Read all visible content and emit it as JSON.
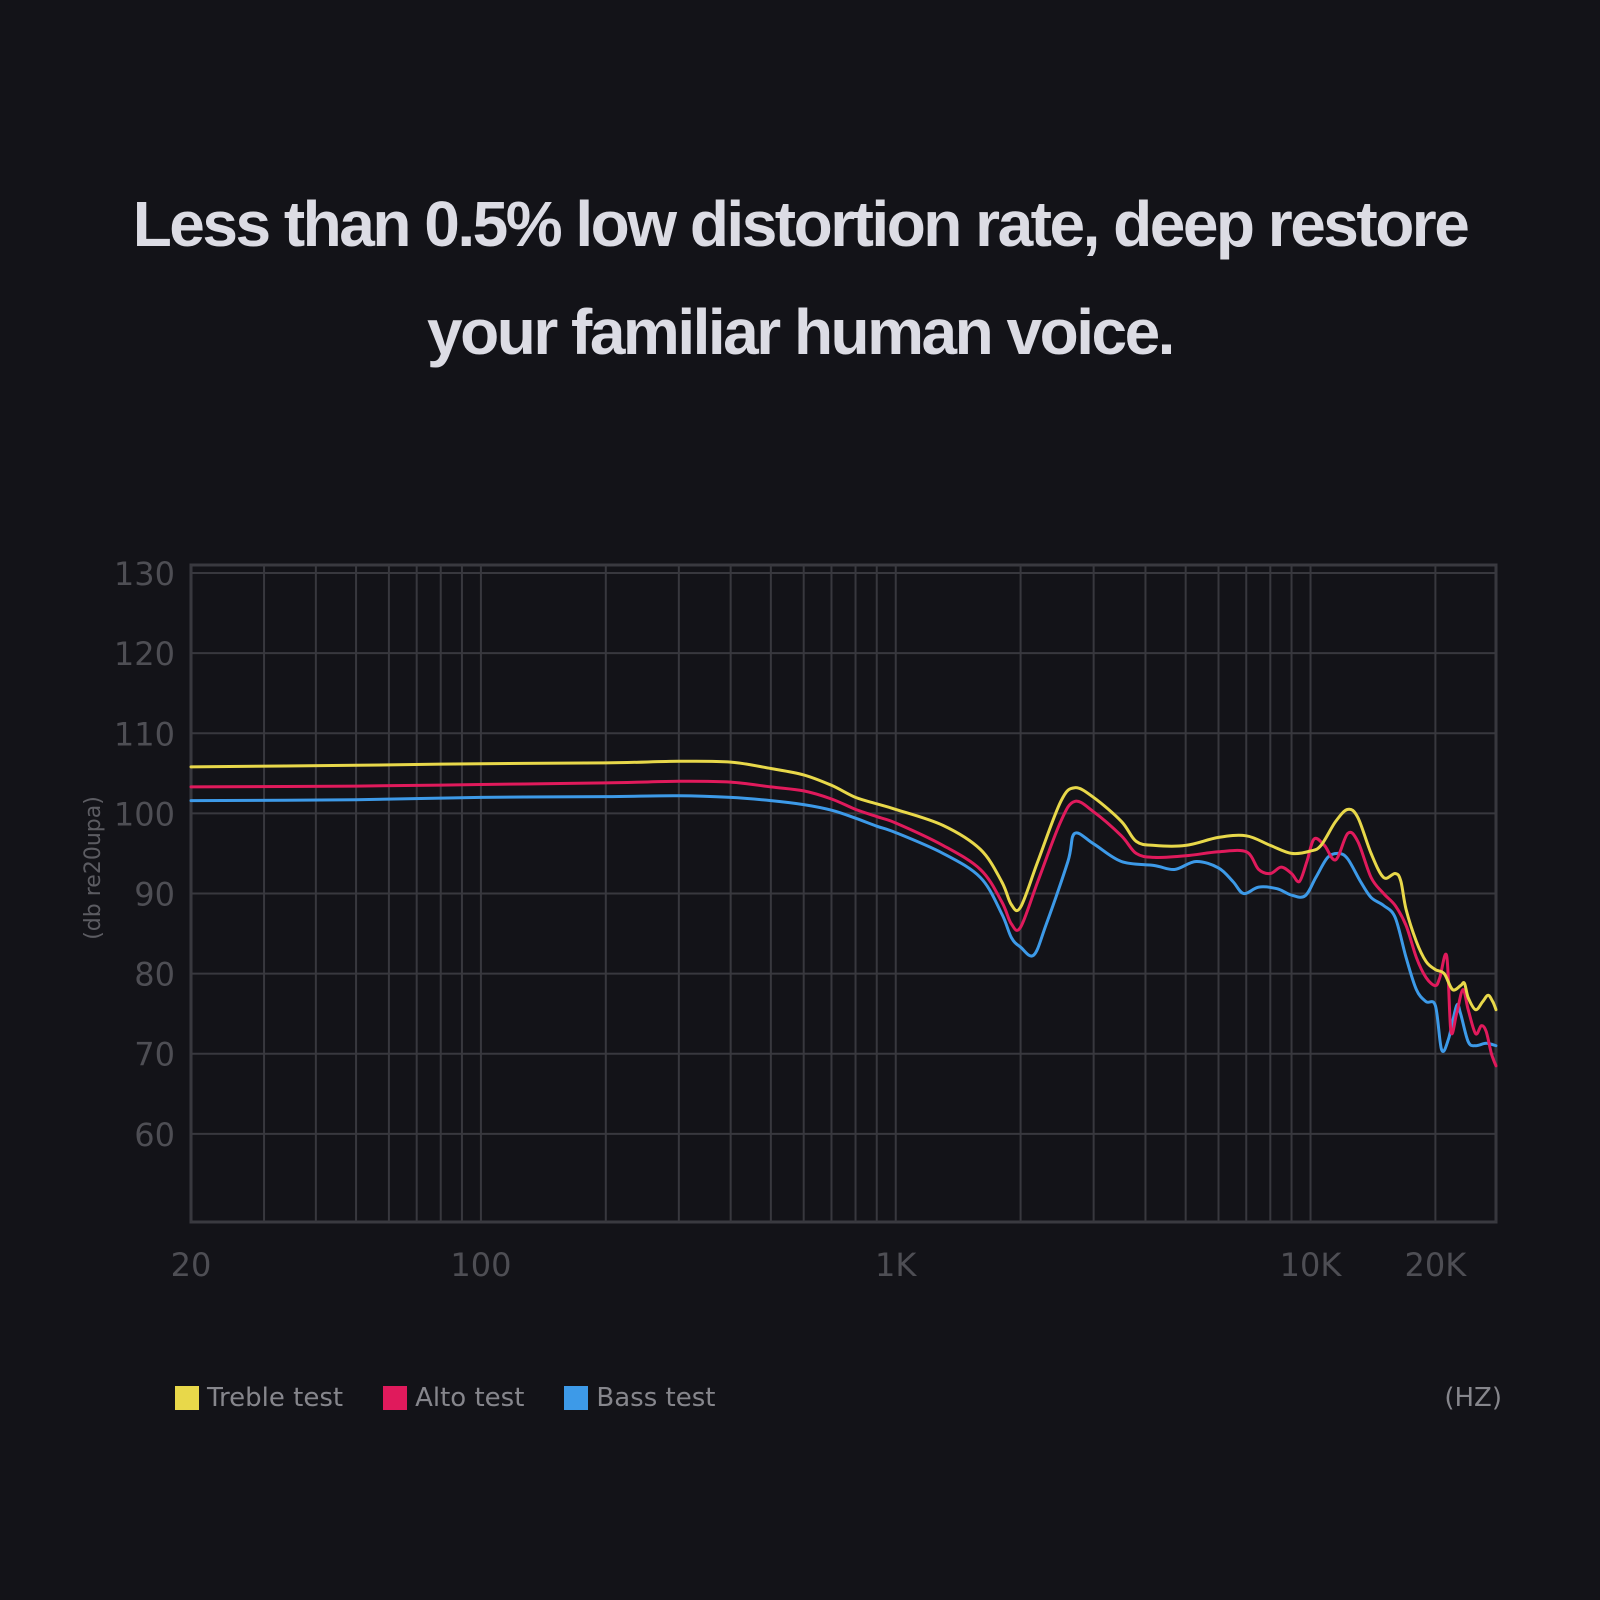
{
  "headline": {
    "line1": "Less than 0.5% low distortion rate, deep restore",
    "line2": "your familiar human voice."
  },
  "chart_data": {
    "type": "line",
    "ylabel": "(db re20upa)",
    "xunit": "(HZ)",
    "xscale": "log",
    "xlim": [
      20,
      28000
    ],
    "ylim": [
      49,
      131
    ],
    "y_ticks": [
      60,
      70,
      80,
      90,
      100,
      110,
      120,
      130
    ],
    "x_tick_labels": [
      {
        "value": 20,
        "label": "20"
      },
      {
        "value": 100,
        "label": "100"
      },
      {
        "value": 1000,
        "label": "1K"
      },
      {
        "value": 10000,
        "label": "10K"
      },
      {
        "value": 20000,
        "label": "20K"
      }
    ],
    "x_gridlines": [
      20,
      30,
      40,
      50,
      60,
      70,
      80,
      90,
      100,
      200,
      300,
      400,
      500,
      600,
      700,
      800,
      900,
      1000,
      2000,
      3000,
      4000,
      5000,
      6000,
      7000,
      8000,
      9000,
      10000,
      20000,
      28000
    ],
    "grid": true,
    "legend_position": "bottom-left",
    "series": [
      {
        "name": "Treble test",
        "color": "#e8d84a",
        "points": [
          [
            20,
            105.8
          ],
          [
            50,
            106
          ],
          [
            100,
            106.2
          ],
          [
            200,
            106.3
          ],
          [
            300,
            106.5
          ],
          [
            400,
            106.4
          ],
          [
            500,
            105.6
          ],
          [
            600,
            104.8
          ],
          [
            700,
            103.5
          ],
          [
            800,
            102
          ],
          [
            900,
            101.2
          ],
          [
            1000,
            100.5
          ],
          [
            1300,
            98.5
          ],
          [
            1600,
            95.5
          ],
          [
            1800,
            91.5
          ],
          [
            1900,
            88.6
          ],
          [
            2000,
            88.3
          ],
          [
            2200,
            94
          ],
          [
            2500,
            101.5
          ],
          [
            2700,
            103.2
          ],
          [
            3000,
            102
          ],
          [
            3500,
            99
          ],
          [
            3800,
            96.5
          ],
          [
            4200,
            96
          ],
          [
            5000,
            96
          ],
          [
            6000,
            97
          ],
          [
            7000,
            97.2
          ],
          [
            8000,
            96
          ],
          [
            9000,
            95
          ],
          [
            10000,
            95.3
          ],
          [
            10600,
            96
          ],
          [
            11500,
            99
          ],
          [
            12300,
            100.5
          ],
          [
            13000,
            99.5
          ],
          [
            14000,
            95
          ],
          [
            15000,
            92
          ],
          [
            16000,
            92.5
          ],
          [
            16500,
            91.6
          ],
          [
            17000,
            88
          ],
          [
            18000,
            84
          ],
          [
            19000,
            81.5
          ],
          [
            20000,
            80.5
          ],
          [
            21000,
            80
          ],
          [
            22000,
            78
          ],
          [
            23000,
            78.5
          ],
          [
            23500,
            78.8
          ],
          [
            24000,
            77
          ],
          [
            25000,
            75.5
          ],
          [
            26000,
            76.5
          ],
          [
            26800,
            77.3
          ],
          [
            27500,
            76.5
          ],
          [
            28000,
            75.5
          ]
        ]
      },
      {
        "name": "Alto test",
        "color": "#e01a5c",
        "points": [
          [
            20,
            103.3
          ],
          [
            50,
            103.4
          ],
          [
            100,
            103.6
          ],
          [
            200,
            103.8
          ],
          [
            300,
            104
          ],
          [
            400,
            103.9
          ],
          [
            500,
            103.3
          ],
          [
            600,
            102.8
          ],
          [
            700,
            101.8
          ],
          [
            800,
            100.5
          ],
          [
            900,
            99.6
          ],
          [
            1000,
            98.8
          ],
          [
            1300,
            96
          ],
          [
            1600,
            93
          ],
          [
            1800,
            89
          ],
          [
            1900,
            86.2
          ],
          [
            2000,
            85.8
          ],
          [
            2200,
            91.5
          ],
          [
            2500,
            99
          ],
          [
            2700,
            101.5
          ],
          [
            3000,
            100.2
          ],
          [
            3500,
            97.2
          ],
          [
            3800,
            95
          ],
          [
            4200,
            94.5
          ],
          [
            5000,
            94.7
          ],
          [
            6000,
            95.2
          ],
          [
            7000,
            95.2
          ],
          [
            7500,
            93
          ],
          [
            8000,
            92.5
          ],
          [
            8500,
            93.3
          ],
          [
            9000,
            92.5
          ],
          [
            9400,
            91.5
          ],
          [
            9800,
            94
          ],
          [
            10200,
            96.8
          ],
          [
            10800,
            96
          ],
          [
            11500,
            94.2
          ],
          [
            12300,
            97.5
          ],
          [
            13000,
            96.5
          ],
          [
            14000,
            92
          ],
          [
            15000,
            90
          ],
          [
            16000,
            88.5
          ],
          [
            17000,
            86
          ],
          [
            18000,
            82
          ],
          [
            19000,
            79.5
          ],
          [
            20000,
            78.5
          ],
          [
            20500,
            79.5
          ],
          [
            21300,
            82.2
          ],
          [
            21800,
            72.8
          ],
          [
            22500,
            75
          ],
          [
            23300,
            78
          ],
          [
            24000,
            75.5
          ],
          [
            25000,
            72.5
          ],
          [
            25800,
            73.5
          ],
          [
            26500,
            72.8
          ],
          [
            27300,
            70
          ],
          [
            28000,
            68.5
          ]
        ]
      },
      {
        "name": "Bass test",
        "color": "#3d9ae8",
        "points": [
          [
            20,
            101.6
          ],
          [
            50,
            101.7
          ],
          [
            100,
            102
          ],
          [
            200,
            102.1
          ],
          [
            300,
            102.2
          ],
          [
            400,
            102
          ],
          [
            500,
            101.6
          ],
          [
            600,
            101.1
          ],
          [
            700,
            100.4
          ],
          [
            800,
            99.4
          ],
          [
            900,
            98.4
          ],
          [
            1000,
            97.6
          ],
          [
            1300,
            95
          ],
          [
            1600,
            92
          ],
          [
            1800,
            87.5
          ],
          [
            1900,
            84.5
          ],
          [
            2000,
            83.3
          ],
          [
            2150,
            82.3
          ],
          [
            2300,
            86
          ],
          [
            2600,
            94
          ],
          [
            2700,
            97.5
          ],
          [
            3000,
            96.2
          ],
          [
            3500,
            94
          ],
          [
            4200,
            93.5
          ],
          [
            4700,
            93
          ],
          [
            5300,
            94
          ],
          [
            6000,
            93.2
          ],
          [
            6500,
            91.5
          ],
          [
            6900,
            90
          ],
          [
            7500,
            90.8
          ],
          [
            8300,
            90.6
          ],
          [
            9000,
            89.8
          ],
          [
            9700,
            89.7
          ],
          [
            10300,
            92
          ],
          [
            11000,
            94.5
          ],
          [
            11700,
            95
          ],
          [
            12300,
            94.3
          ],
          [
            13200,
            91.5
          ],
          [
            14000,
            89.5
          ],
          [
            15000,
            88.5
          ],
          [
            16000,
            87
          ],
          [
            17000,
            82
          ],
          [
            18000,
            78
          ],
          [
            19000,
            76.5
          ],
          [
            20000,
            76
          ],
          [
            20700,
            70.5
          ],
          [
            21500,
            71.8
          ],
          [
            22500,
            76
          ],
          [
            23000,
            75
          ],
          [
            24000,
            71.5
          ],
          [
            25000,
            71
          ],
          [
            26500,
            71.3
          ],
          [
            28000,
            71
          ]
        ]
      }
    ]
  }
}
